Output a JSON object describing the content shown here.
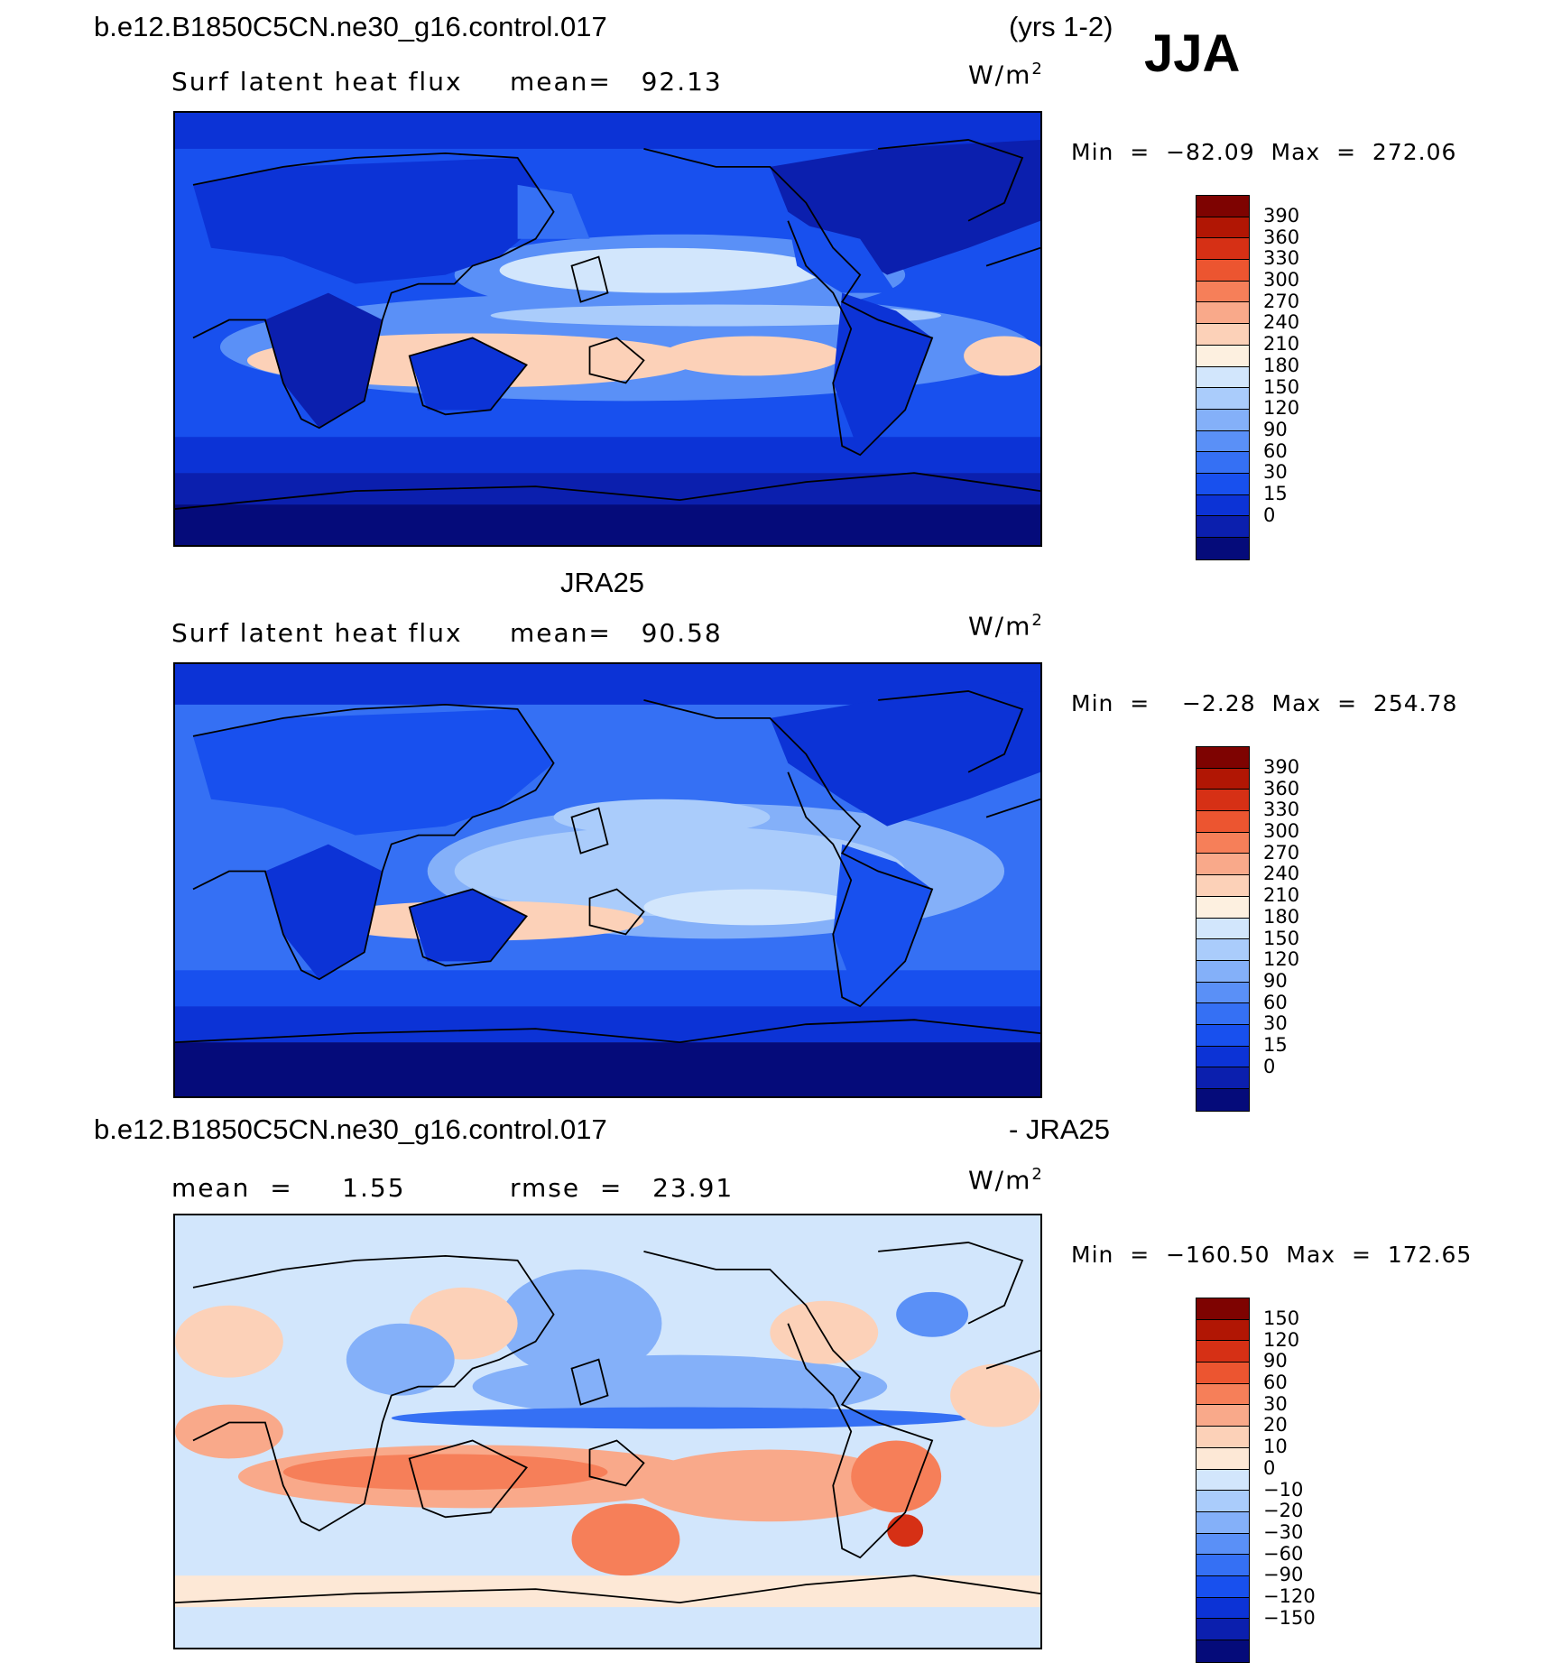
{
  "season": "JJA",
  "unit": "W/m",
  "unit_exp": "2",
  "colors": {
    "sequential": [
      "#050b7a",
      "#0b1fae",
      "#0c33d6",
      "#1850ee",
      "#3570f4",
      "#5a90f7",
      "#84b0f9",
      "#aaccfb",
      "#d2e6fc",
      "#fdf0e0",
      "#fcd1b8",
      "#f9a98a",
      "#f67f59",
      "#ec5530",
      "#d63015",
      "#b11604",
      "#7e0301"
    ],
    "diverging": [
      "#050b7a",
      "#0b1fae",
      "#0c33d6",
      "#1850ee",
      "#3570f4",
      "#5a90f7",
      "#84b0f9",
      "#aaccfb",
      "#d2e6fc",
      "#fde8d6",
      "#fcd1b8",
      "#f9a98a",
      "#f67f59",
      "#ec5530",
      "#d63015",
      "#b11604",
      "#7e0301"
    ]
  },
  "panels": [
    {
      "case_title": "b.e12.B1850C5CN.ne30_g16.control.017",
      "case_suffix": "(yrs 1-2)",
      "left_label": "Surf latent heat flux",
      "mid_label": "mean=   92.13",
      "minmax": "Min  =  −82.09  Max  =  272.06",
      "colorbar_labels": [
        "390",
        "360",
        "330",
        "300",
        "270",
        "240",
        "210",
        "180",
        "150",
        "120",
        "90",
        "60",
        "30",
        "15",
        "0"
      ]
    },
    {
      "case_title": "JRA25",
      "left_label": "Surf latent heat flux",
      "mid_label": "mean=   90.58",
      "minmax": "Min  =    −2.28  Max  =  254.78",
      "colorbar_labels": [
        "390",
        "360",
        "330",
        "300",
        "270",
        "240",
        "210",
        "180",
        "150",
        "120",
        "90",
        "60",
        "30",
        "15",
        "0"
      ]
    },
    {
      "case_title": "b.e12.B1850C5CN.ne30_g16.control.017",
      "case_suffix": "- JRA25",
      "left_label": "mean  =     1.55",
      "mid_label": "rmse  =   23.91",
      "minmax": "Min  =  −160.50  Max  =  172.65",
      "colorbar_labels": [
        "150",
        "120",
        "90",
        "60",
        "30",
        "20",
        "10",
        "0",
        "−10",
        "−20",
        "−30",
        "−60",
        "−90",
        "−120",
        "−150"
      ]
    }
  ]
}
